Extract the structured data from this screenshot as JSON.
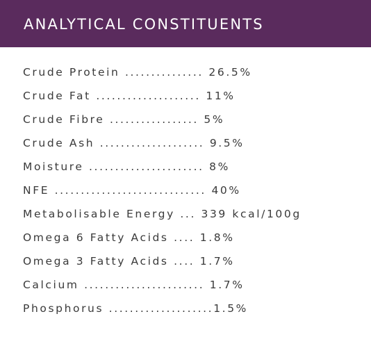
{
  "header": {
    "title": "ANALYTICAL CONSTITUENTS"
  },
  "rows": [
    "Crude Protein ............... 26.5%",
    "Crude Fat .................... 11%",
    "Crude Fibre ................. 5%",
    "Crude Ash .................... 9.5%",
    "Moisture ...................... 8%",
    "NFE ............................. 40%",
    "Metabolisable Energy ... 339 kcal/100g",
    "Omega 6 Fatty Acids .... 1.8%",
    "Omega 3 Fatty Acids .... 1.7%",
    "Calcium ....................... 1.7%",
    "Phosphorus ....................1.5%"
  ]
}
